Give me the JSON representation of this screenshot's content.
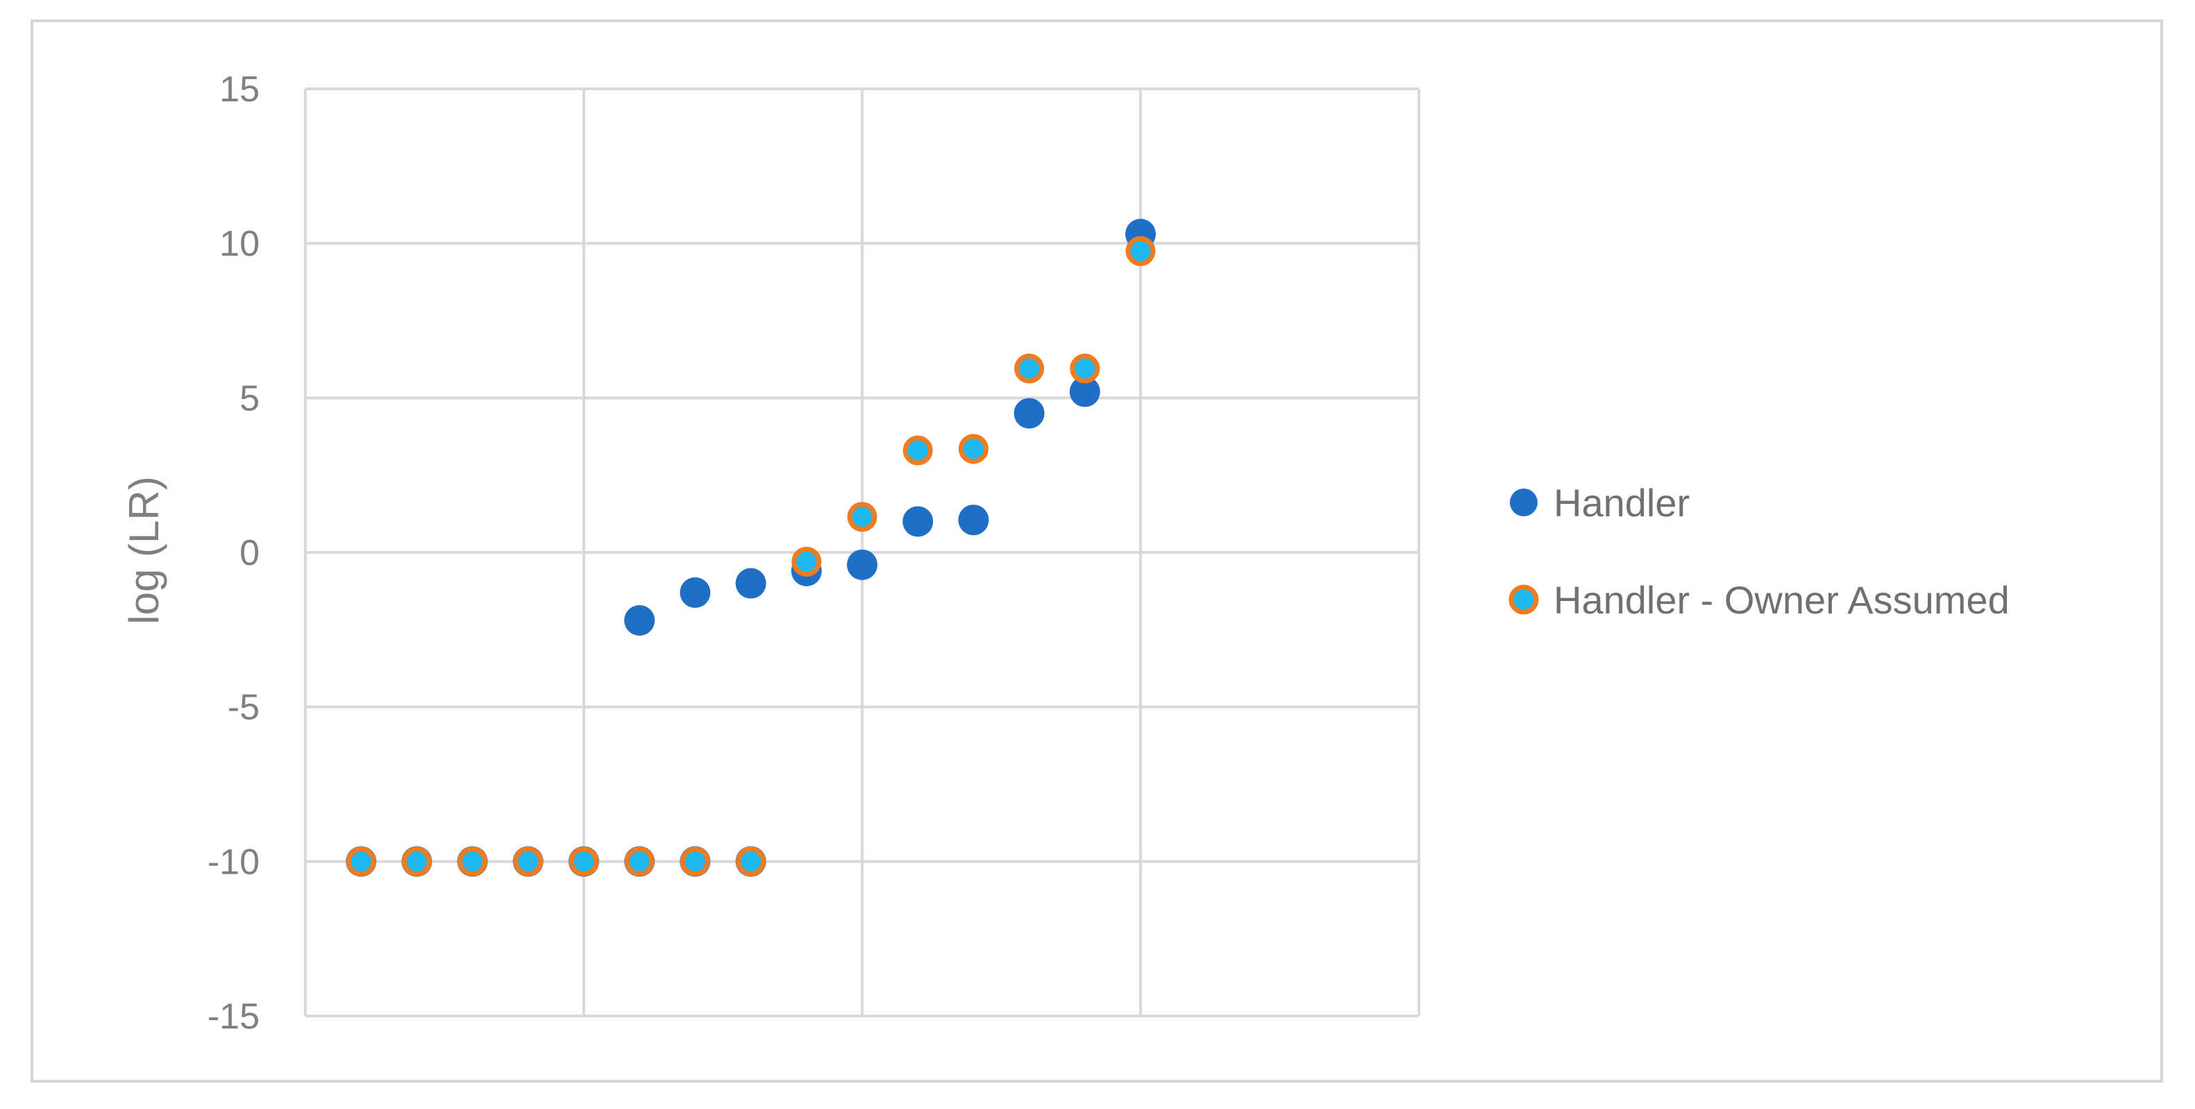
{
  "chart_data": {
    "type": "scatter",
    "title": "",
    "xlabel": "",
    "ylabel": "log (LR)",
    "xlim": [
      0,
      20
    ],
    "ylim": [
      -15,
      15
    ],
    "yticks": [
      15,
      10,
      5,
      0,
      -5,
      -10,
      -15
    ],
    "ytick_labels": [
      "15",
      "10",
      "5",
      "0",
      "-5",
      "-10",
      "-15"
    ],
    "x_gridlines": [
      0,
      5,
      10,
      15,
      20
    ],
    "grid": true,
    "legend_position": "right",
    "series": [
      {
        "name": "Handler",
        "color": "#1f6fc6",
        "marker": "filled-circle",
        "points": [
          {
            "x": 1,
            "y": -10
          },
          {
            "x": 2,
            "y": -10
          },
          {
            "x": 3,
            "y": -10
          },
          {
            "x": 4,
            "y": -10
          },
          {
            "x": 5,
            "y": -10
          },
          {
            "x": 6,
            "y": -10
          },
          {
            "x": 7,
            "y": -10
          },
          {
            "x": 8,
            "y": -10
          },
          {
            "x": 6,
            "y": -2.2
          },
          {
            "x": 7,
            "y": -1.3
          },
          {
            "x": 8,
            "y": -1.0
          },
          {
            "x": 9,
            "y": -0.6
          },
          {
            "x": 10,
            "y": -0.4
          },
          {
            "x": 11,
            "y": 1.0
          },
          {
            "x": 12,
            "y": 1.05
          },
          {
            "x": 13,
            "y": 4.5
          },
          {
            "x": 14,
            "y": 5.2
          },
          {
            "x": 15,
            "y": 10.3
          }
        ]
      },
      {
        "name": "Handler - Owner Assumed",
        "color": "#1fb8ee",
        "border_color": "#f07c22",
        "marker": "ringed-circle",
        "points": [
          {
            "x": 1,
            "y": -10
          },
          {
            "x": 2,
            "y": -10
          },
          {
            "x": 3,
            "y": -10
          },
          {
            "x": 4,
            "y": -10
          },
          {
            "x": 5,
            "y": -10
          },
          {
            "x": 6,
            "y": -10
          },
          {
            "x": 7,
            "y": -10
          },
          {
            "x": 8,
            "y": -10
          },
          {
            "x": 9,
            "y": -0.3
          },
          {
            "x": 10,
            "y": 1.15
          },
          {
            "x": 11,
            "y": 3.3
          },
          {
            "x": 12,
            "y": 3.35
          },
          {
            "x": 13,
            "y": 5.95
          },
          {
            "x": 14,
            "y": 5.95
          },
          {
            "x": 15,
            "y": 9.75
          }
        ]
      }
    ]
  },
  "colors": {
    "frame_border": "#d4d4d4",
    "grid": "#d9d9d9",
    "text": "#7f7f7f"
  }
}
